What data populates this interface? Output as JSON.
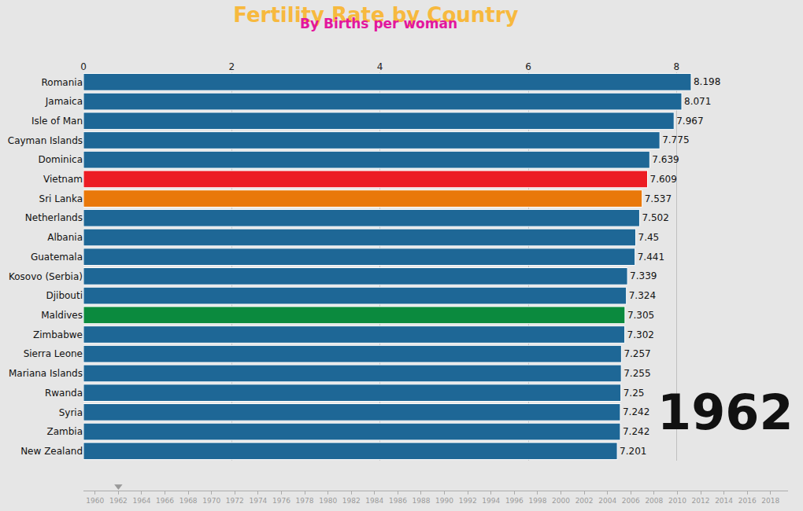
{
  "chart_data": {
    "type": "bar",
    "orientation": "horizontal",
    "title": "Fertility Rate by Country",
    "subtitle": "By Births per woman",
    "categories": [
      "Romania",
      "Jamaica",
      "Isle of Man",
      "Cayman Islands",
      "Dominica",
      "Vietnam",
      "Sri Lanka",
      "Netherlands",
      "Albania",
      "Guatemala",
      "Kosovo (Serbia)",
      "Djibouti",
      "Maldives",
      "Zimbabwe",
      "Sierra Leone",
      "Mariana Islands",
      "Rwanda",
      "Syria",
      "Zambia",
      "New Zealand"
    ],
    "values": [
      8.198,
      8.071,
      7.967,
      7.775,
      7.639,
      7.609,
      7.537,
      7.502,
      7.45,
      7.441,
      7.339,
      7.324,
      7.305,
      7.302,
      7.257,
      7.255,
      7.25,
      7.242,
      7.242,
      7.201
    ],
    "colors": [
      "#1e6796",
      "#1e6796",
      "#1e6796",
      "#1e6796",
      "#1e6796",
      "#ec1c24",
      "#e9780a",
      "#1e6796",
      "#1e6796",
      "#1e6796",
      "#1e6796",
      "#1e6796",
      "#0b8a3e",
      "#1e6796",
      "#1e6796",
      "#1e6796",
      "#1e6796",
      "#1e6796",
      "#1e6796",
      "#1e6796"
    ],
    "xlim": [
      0,
      9.6
    ],
    "xticks": [
      0,
      2,
      4,
      6,
      8
    ],
    "grid": true,
    "data_labels": true,
    "year": 1962,
    "timeline": {
      "xlim": [
        1959,
        2019.5
      ],
      "xticks": [
        1960,
        1962,
        1964,
        1966,
        1968,
        1970,
        1972,
        1974,
        1976,
        1978,
        1980,
        1982,
        1984,
        1986,
        1988,
        1990,
        1992,
        1994,
        1996,
        1998,
        2000,
        2002,
        2004,
        2006,
        2008,
        2010,
        2012,
        2014,
        2016,
        2018
      ]
    }
  }
}
